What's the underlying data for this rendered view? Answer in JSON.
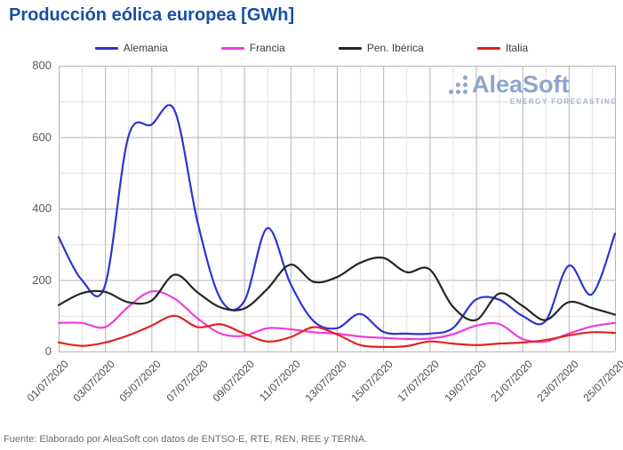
{
  "title": "Producción eólica europea [GWh]",
  "watermark": {
    "brand": "AleaSoft",
    "tagline": "ENERGY FORECASTING"
  },
  "footer": "Fuente: Elaborado por AleaSoft con datos de ENTSO-E, RTE, REN, REE y TERNA.",
  "chart_data": {
    "type": "line",
    "title": "Producción eólica europea [GWh]",
    "ylabel": "",
    "xlabel": "",
    "ylim": [
      0,
      800
    ],
    "y_ticks": [
      0,
      200,
      400,
      600,
      800
    ],
    "grid": {
      "y_minor_step": 100,
      "y_major_step": 200,
      "x_minor_step_days": 1,
      "x_major_step_days": 2
    },
    "legend_position": "top",
    "x_tick_labels": [
      "01/07/2020",
      "03/07/2020",
      "05/07/2020",
      "07/07/2020",
      "09/07/2020",
      "11/07/2020",
      "13/07/2020",
      "15/07/2020",
      "17/07/2020",
      "19/07/2020",
      "21/07/2020",
      "23/07/2020",
      "25/07/2020"
    ],
    "categories": [
      "01/07/2020",
      "02/07/2020",
      "03/07/2020",
      "04/07/2020",
      "05/07/2020",
      "06/07/2020",
      "07/07/2020",
      "08/07/2020",
      "09/07/2020",
      "10/07/2020",
      "11/07/2020",
      "12/07/2020",
      "13/07/2020",
      "14/07/2020",
      "15/07/2020",
      "16/07/2020",
      "17/07/2020",
      "18/07/2020",
      "19/07/2020",
      "20/07/2020",
      "21/07/2020",
      "22/07/2020",
      "23/07/2020",
      "24/07/2020",
      "25/07/2020"
    ],
    "series": [
      {
        "name": "Alemania",
        "color": "#2e34cf",
        "values": [
          320,
          200,
          185,
          600,
          635,
          675,
          360,
          145,
          140,
          345,
          190,
          85,
          65,
          105,
          55,
          50,
          50,
          65,
          145,
          145,
          100,
          85,
          240,
          160,
          330
        ]
      },
      {
        "name": "Francia",
        "color": "#ee3ddd",
        "values": [
          80,
          80,
          68,
          125,
          168,
          148,
          92,
          50,
          44,
          65,
          62,
          54,
          50,
          42,
          38,
          35,
          36,
          48,
          72,
          77,
          35,
          28,
          50,
          70,
          80
        ]
      },
      {
        "name": "Pen. Ibérica",
        "color": "#262626",
        "values": [
          130,
          163,
          167,
          138,
          142,
          215,
          165,
          123,
          120,
          175,
          243,
          195,
          208,
          248,
          262,
          222,
          230,
          126,
          88,
          162,
          128,
          88,
          138,
          122,
          103
        ]
      },
      {
        "name": "Italia",
        "color": "#e32222",
        "values": [
          25,
          16,
          25,
          45,
          72,
          100,
          68,
          76,
          50,
          28,
          40,
          68,
          48,
          18,
          13,
          15,
          28,
          22,
          18,
          22,
          25,
          32,
          45,
          54,
          52
        ]
      }
    ],
    "colors": {
      "grid_minor": "#e0e0e0",
      "grid_major": "#b5b5b5",
      "title": "#164fa5",
      "watermark": "#8da5cb"
    }
  }
}
